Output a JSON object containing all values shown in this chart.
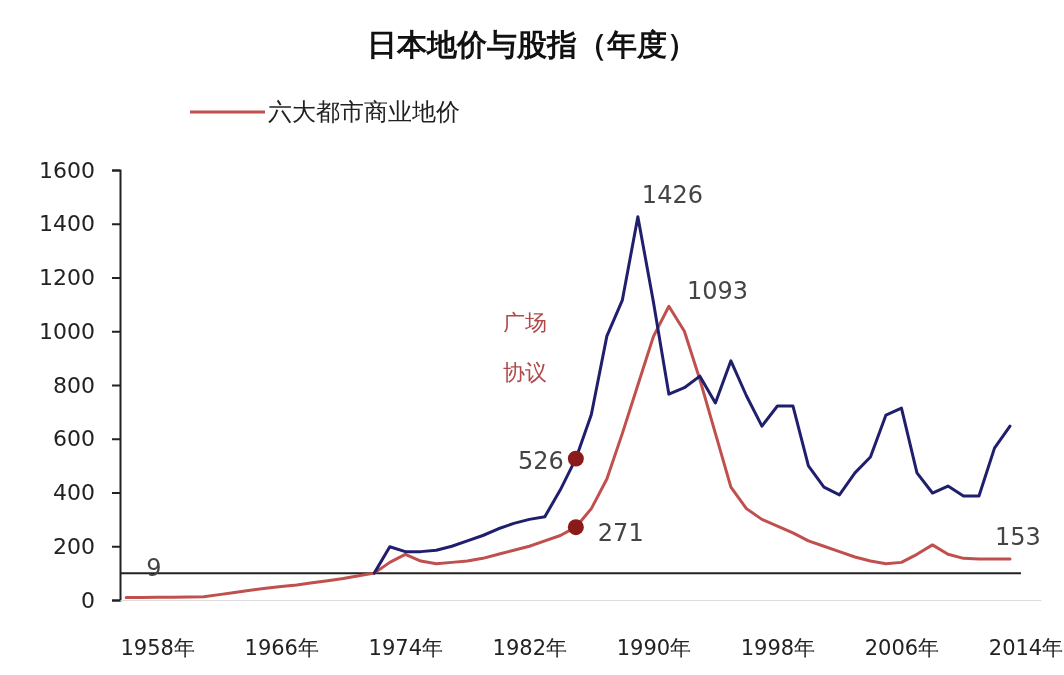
{
  "chart_data": {
    "type": "line",
    "title": "日本地价与股指（年度）",
    "xlim": [
      1955.6,
      2015
    ],
    "xticks": [
      {
        "value": 1958,
        "label": "1958年"
      },
      {
        "value": 1966,
        "label": "1966年"
      },
      {
        "value": 1974,
        "label": "1974年"
      },
      {
        "value": 1982,
        "label": "1982年"
      },
      {
        "value": 1990,
        "label": "1990年"
      },
      {
        "value": 1998,
        "label": "1998年"
      },
      {
        "value": 2006,
        "label": "2006年"
      },
      {
        "value": 2014,
        "label": "2014年"
      }
    ],
    "ylim": [
      0,
      1600
    ],
    "yticks": [
      0,
      200,
      400,
      600,
      800,
      1000,
      1200,
      1400,
      1600
    ],
    "legend": "top",
    "grid": false,
    "marker": "none",
    "line_style": "solid",
    "series": [
      {
        "name": "六大都市商业地价",
        "color": "#c0504d",
        "x": [
          1956,
          1957,
          1958,
          1959,
          1960,
          1961,
          1962,
          1963,
          1964,
          1965,
          1966,
          1967,
          1968,
          1969,
          1970,
          1971,
          1972,
          1973,
          1974,
          1975,
          1976,
          1977,
          1978,
          1979,
          1980,
          1981,
          1982,
          1983,
          1984,
          1985,
          1986,
          1987,
          1988,
          1989,
          1990,
          1991,
          1992,
          1993,
          1994,
          1995,
          1996,
          1997,
          1998,
          1999,
          2000,
          2001,
          2002,
          2003,
          2004,
          2005,
          2006,
          2007,
          2008,
          2009,
          2010,
          2011,
          2012,
          2013
        ],
        "values": [
          9,
          9,
          10,
          10,
          11,
          12,
          20,
          28,
          36,
          44,
          50,
          56,
          64,
          72,
          80,
          90,
          100,
          140,
          170,
          145,
          135,
          140,
          145,
          155,
          170,
          185,
          200,
          220,
          240,
          271,
          340,
          450,
          620,
          800,
          980,
          1093,
          1000,
          820,
          620,
          420,
          340,
          300,
          275,
          250,
          220,
          200,
          180,
          160,
          145,
          135,
          140,
          170,
          205,
          170,
          155,
          153,
          153,
          153
        ]
      },
      {
        "color": "#1f1f6e",
        "x": [
          1972,
          1973,
          1974,
          1975,
          1976,
          1977,
          1978,
          1979,
          1980,
          1981,
          1982,
          1983,
          1984,
          1985,
          1986,
          1987,
          1988,
          1989,
          1990,
          1991,
          1992,
          1993,
          1994,
          1995,
          1996,
          1997,
          1998,
          1999,
          2000,
          2001,
          2002,
          2003,
          2004,
          2005,
          2006,
          2007,
          2008,
          2009,
          2010,
          2011,
          2012,
          2013
        ],
        "values": [
          100,
          198,
          180,
          180,
          185,
          200,
          220,
          240,
          265,
          285,
          300,
          310,
          410,
          526,
          690,
          982,
          1116,
          1426,
          1110,
          766,
          790,
          833,
          733,
          890,
          760,
          647,
          722,
          722,
          499,
          420,
          391,
          473,
          532,
          688,
          714,
          473,
          398,
          424,
          387,
          387,
          565,
          647
        ]
      },
      {
        "type": "scatter",
        "color": "#8b1a1a",
        "marker": "circle",
        "x": [
          1985,
          1985
        ],
        "values": [
          526,
          271
        ]
      }
    ],
    "ref_lines": [
      {
        "axis": "y",
        "value": 100,
        "color": "#222222"
      }
    ],
    "annotations": [
      {
        "text": "9",
        "x": 1956,
        "y": 9
      },
      "广场",
      "协议",
      {
        "text": "526",
        "x": 1985,
        "y": 526
      },
      {
        "text": "271",
        "x": 1985,
        "y": 271
      },
      {
        "text": "1426",
        "x": 1989,
        "y": 1426
      },
      {
        "text": "1093",
        "x": 1991,
        "y": 1093
      },
      {
        "text": "153",
        "x": 2013,
        "y": 153
      }
    ]
  }
}
